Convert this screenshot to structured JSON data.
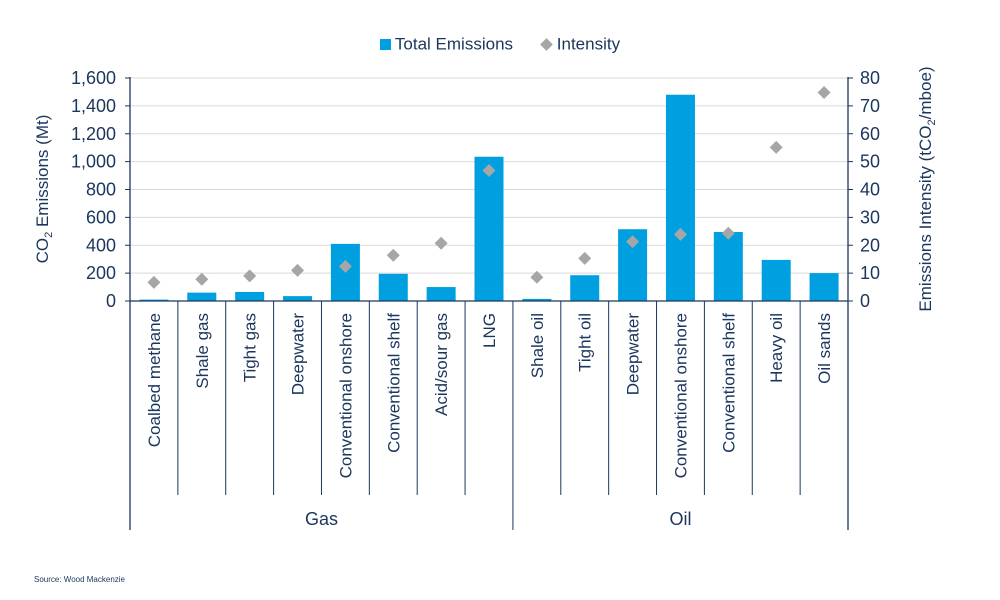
{
  "chart_data": {
    "type": "bar",
    "legend": {
      "placement": "top",
      "entries": [
        "Total Emissions",
        "Intensity"
      ]
    },
    "ylabel": {
      "prefix": "CO",
      "sub": "2",
      "suffix": " Emissions (Mt)"
    },
    "y2label": {
      "prefix": "Emissions Intensity (tCO",
      "sub": "2",
      "suffix": "/mboe)"
    },
    "ylim": [
      0,
      1600
    ],
    "y2lim": [
      0,
      80
    ],
    "yticks": [
      "0",
      "200",
      "400",
      "600",
      "800",
      "1,000",
      "1,200",
      "1,400",
      "1,600"
    ],
    "y2ticks": [
      "0",
      "10",
      "20",
      "30",
      "40",
      "50",
      "60",
      "70",
      "80"
    ],
    "grid": true,
    "groups": [
      {
        "label": "Gas",
        "count": 8
      },
      {
        "label": "Oil",
        "count": 7
      }
    ],
    "categories": [
      "Coalbed methane",
      "Shale gas",
      "Tight gas",
      "Deepwater",
      "Conventional onshore",
      "Conventional shelf",
      "Acid/sour gas",
      "LNG",
      "Shale oil",
      "Tight oil",
      "Deepwater",
      "Conventional onshore",
      "Conventional shelf",
      "Heavy oil",
      "Oil sands"
    ],
    "series": [
      {
        "name": "Total Emissions",
        "type": "bar",
        "axis": "left",
        "color": "#009fdf",
        "values": [
          10,
          60,
          65,
          35,
          410,
          195,
          100,
          1035,
          15,
          185,
          515,
          1480,
          495,
          295,
          200
        ]
      },
      {
        "name": "Intensity",
        "type": "scatter",
        "marker": "diamond",
        "axis": "right",
        "color": "#a6a6a6",
        "values": [
          6.7,
          7.8,
          9.0,
          11.0,
          12.4,
          16.4,
          20.7,
          46.8,
          8.5,
          15.3,
          21.3,
          23.9,
          24.3,
          55.1,
          74.8
        ]
      }
    ]
  },
  "source": "Source: Wood Mackenzie",
  "colors": {
    "axis": "#1b365d",
    "grid": "#d9d9d9"
  }
}
